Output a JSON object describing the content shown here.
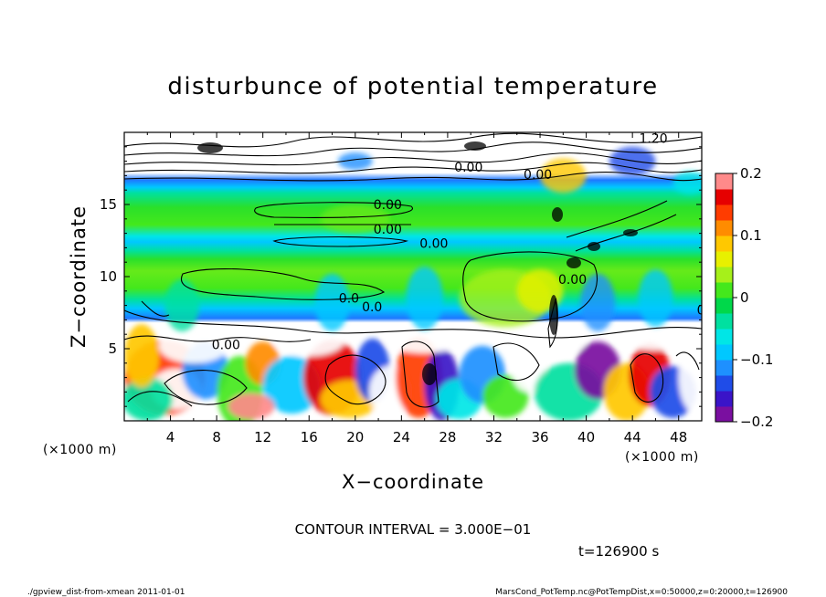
{
  "chart_data": {
    "type": "heatmap",
    "title": "disturbunce of potential temperature",
    "xlabel": "X−coordinate",
    "ylabel": "Z−coordinate",
    "x_unit_label": "(×1000 m)",
    "z_unit_label": "(×1000 m)",
    "xlim": [
      0,
      50
    ],
    "ylim": [
      0,
      20
    ],
    "x_ticks": [
      4,
      8,
      12,
      16,
      20,
      24,
      28,
      32,
      36,
      40,
      44,
      48
    ],
    "y_ticks": [
      5,
      10,
      15
    ],
    "colorbar": {
      "range": [
        -0.2,
        0.2
      ],
      "ticks": [
        {
          "value": 0.2,
          "label": "0.2"
        },
        {
          "value": 0.1,
          "label": "0.1"
        },
        {
          "value": 0.0,
          "label": "0"
        },
        {
          "value": -0.1,
          "label": "−0.1"
        },
        {
          "value": -0.2,
          "label": "−0.2"
        }
      ],
      "colors": [
        "#7a0fa0",
        "#3a14c8",
        "#1f4ce8",
        "#1e90ff",
        "#00c8ff",
        "#00e6e6",
        "#00e0a0",
        "#00d84a",
        "#44e81c",
        "#a6f01a",
        "#e8f000",
        "#ffc800",
        "#ff8c00",
        "#ff3c00",
        "#e60000",
        "#ff8a8a"
      ]
    },
    "contour_interval_label": "CONTOUR INTERVAL = 3.000E−01",
    "contour_labels": [
      {
        "x": 9,
        "z": 5.3,
        "text": "0.00"
      },
      {
        "x": 23,
        "z": 15.0,
        "text": "0.00"
      },
      {
        "x": 23,
        "z": 13.3,
        "text": "0.00"
      },
      {
        "x": 27,
        "z": 12.3,
        "text": "0.00"
      },
      {
        "x": 20,
        "z": 8.5,
        "text": "0.0"
      },
      {
        "x": 22,
        "z": 7.9,
        "text": "0.0"
      },
      {
        "x": 39,
        "z": 9.8,
        "text": "0.00"
      },
      {
        "x": 51,
        "z": 7.7,
        "text": "0.00"
      },
      {
        "x": 30,
        "z": 17.6,
        "text": "0.00"
      },
      {
        "x": 36,
        "z": 17.1,
        "text": "0.00"
      },
      {
        "x": 46,
        "z": 19.6,
        "text": "1.20"
      },
      {
        "x": 53,
        "z": 18.2,
        "text": "0.00"
      }
    ]
  },
  "time_label": "t=126900 s",
  "footer": {
    "left": "./gpview_dist-from-xmean  2011-01-01",
    "right": "MarsCond_PotTemp.nc@PotTempDist,x=0:50000,z=0:20000,t=126900"
  }
}
